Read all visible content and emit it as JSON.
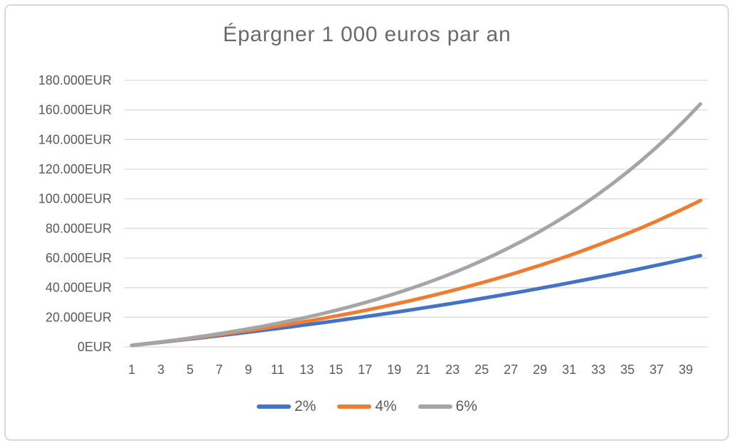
{
  "chart_data": {
    "type": "line",
    "title": "Épargner 1 000 euros par an",
    "xlabel": "",
    "ylabel": "",
    "x": [
      1,
      2,
      3,
      4,
      5,
      6,
      7,
      8,
      9,
      10,
      11,
      12,
      13,
      14,
      15,
      16,
      17,
      18,
      19,
      20,
      21,
      22,
      23,
      24,
      25,
      26,
      27,
      28,
      29,
      30,
      31,
      32,
      33,
      34,
      35,
      36,
      37,
      38,
      39,
      40
    ],
    "x_ticks": [
      {
        "value": 1,
        "label": "1"
      },
      {
        "value": 3,
        "label": "3"
      },
      {
        "value": 5,
        "label": "5"
      },
      {
        "value": 7,
        "label": "7"
      },
      {
        "value": 9,
        "label": "9"
      },
      {
        "value": 11,
        "label": "11"
      },
      {
        "value": 13,
        "label": "13"
      },
      {
        "value": 15,
        "label": "15"
      },
      {
        "value": 17,
        "label": "17"
      },
      {
        "value": 19,
        "label": "19"
      },
      {
        "value": 21,
        "label": "21"
      },
      {
        "value": 23,
        "label": "23"
      },
      {
        "value": 25,
        "label": "25"
      },
      {
        "value": 27,
        "label": "27"
      },
      {
        "value": 29,
        "label": "29"
      },
      {
        "value": 31,
        "label": "31"
      },
      {
        "value": 33,
        "label": "33"
      },
      {
        "value": 35,
        "label": "35"
      },
      {
        "value": 37,
        "label": "37"
      },
      {
        "value": 39,
        "label": "39"
      }
    ],
    "y_ticks": [
      {
        "value": 0,
        "label": "0EUR"
      },
      {
        "value": 20000,
        "label": "20.000EUR"
      },
      {
        "value": 40000,
        "label": "40.000EUR"
      },
      {
        "value": 60000,
        "label": "60.000EUR"
      },
      {
        "value": 80000,
        "label": "80.000EUR"
      },
      {
        "value": 100000,
        "label": "100.000EUR"
      },
      {
        "value": 120000,
        "label": "120.000EUR"
      },
      {
        "value": 140000,
        "label": "140.000EUR"
      },
      {
        "value": 160000,
        "label": "160.000EUR"
      },
      {
        "value": 180000,
        "label": "180.000EUR"
      }
    ],
    "ylim": [
      0,
      180000
    ],
    "grid": "horizontal",
    "legend_position": "bottom",
    "series": [
      {
        "name": "2%",
        "color": "#4472C4",
        "values": [
          1020,
          2060,
          3122,
          4204,
          5308,
          6434,
          7583,
          8755,
          9950,
          11169,
          12412,
          13680,
          14974,
          16293,
          17639,
          19012,
          20412,
          21841,
          23297,
          24783,
          26299,
          27845,
          29422,
          31030,
          32671,
          34344,
          36051,
          37792,
          39568,
          41379,
          43227,
          45112,
          47034,
          48994,
          50994,
          53034,
          55115,
          57237,
          59402,
          61610
        ]
      },
      {
        "name": "4%",
        "color": "#ED7D31",
        "values": [
          1040,
          2122,
          3246,
          4416,
          5633,
          6898,
          8214,
          9583,
          11006,
          12486,
          14026,
          15627,
          17292,
          19024,
          20825,
          22698,
          24645,
          26671,
          28778,
          30969,
          33248,
          35618,
          38083,
          40646,
          43312,
          46084,
          48968,
          51966,
          55085,
          58328,
          61701,
          65210,
          68858,
          72652,
          76598,
          80702,
          84970,
          89409,
          94026,
          98827
        ]
      },
      {
        "name": "6%",
        "color": "#A5A5A5",
        "values": [
          1060,
          2184,
          3375,
          4637,
          5975,
          7394,
          8897,
          10491,
          12181,
          13972,
          15870,
          17882,
          20015,
          22276,
          24673,
          27213,
          29906,
          32760,
          35786,
          38993,
          42392,
          45996,
          49816,
          53865,
          58156,
          62706,
          67528,
          72640,
          78058,
          83802,
          89890,
          96343,
          103184,
          110435,
          118121,
          126268,
          134904,
          144058,
          153762,
          164048
        ]
      }
    ],
    "styles": {
      "grid_color": "#D9D9D9",
      "axis_text_color": "#595959",
      "title_color": "#6A6A6A",
      "frame_border_color": "#D9D9D9",
      "background": "#FFFFFF",
      "line_width": 5
    }
  }
}
